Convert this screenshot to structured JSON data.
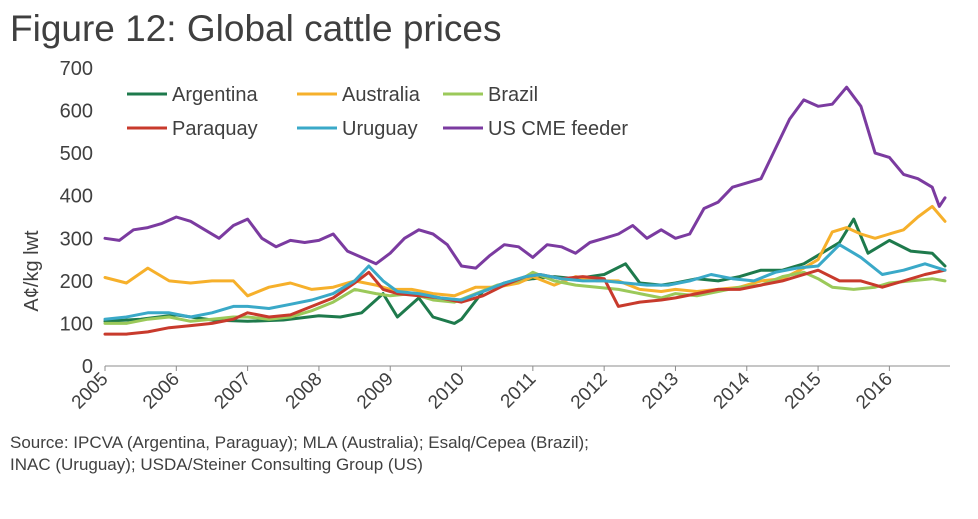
{
  "title": "Figure 12: Global cattle prices",
  "source": {
    "line1": "Source: IPCVA (Argentina, Paraguay); MLA (Australia); Esalq/Cepea (Brazil);",
    "line2": "INAC (Uruguay); USDA/Steiner Consulting Group (US)"
  },
  "chart_data": {
    "type": "line",
    "ylabel": "A¢/kg lwt",
    "ylim": [
      0,
      700
    ],
    "yticks": [
      0,
      100,
      200,
      300,
      400,
      500,
      600,
      700
    ],
    "xlim": [
      2005,
      2016.85
    ],
    "xticks": [
      "2005",
      "2006",
      "2007",
      "2008",
      "2009",
      "2010",
      "2011",
      "2012",
      "2013",
      "2014",
      "2015",
      "2016"
    ],
    "grid": false,
    "legend_position": "top-left",
    "series": [
      {
        "name": "Argentina",
        "color": "#1e7a4c",
        "points": [
          [
            2005,
            105
          ],
          [
            2005.5,
            110
          ],
          [
            2006,
            120
          ],
          [
            2006.5,
            108
          ],
          [
            2007,
            105
          ],
          [
            2007.5,
            108
          ],
          [
            2008,
            118
          ],
          [
            2008.3,
            115
          ],
          [
            2008.6,
            125
          ],
          [
            2008.9,
            170
          ],
          [
            2009.1,
            115
          ],
          [
            2009.4,
            160
          ],
          [
            2009.6,
            115
          ],
          [
            2009.9,
            100
          ],
          [
            2010,
            110
          ],
          [
            2010.3,
            175
          ],
          [
            2010.6,
            195
          ],
          [
            2011,
            205
          ],
          [
            2011.3,
            210
          ],
          [
            2011.6,
            205
          ],
          [
            2012,
            215
          ],
          [
            2012.3,
            240
          ],
          [
            2012.5,
            195
          ],
          [
            2012.8,
            190
          ],
          [
            2013,
            195
          ],
          [
            2013.3,
            205
          ],
          [
            2013.6,
            200
          ],
          [
            2013.9,
            210
          ],
          [
            2014.2,
            225
          ],
          [
            2014.5,
            225
          ],
          [
            2014.8,
            240
          ],
          [
            2015,
            260
          ],
          [
            2015.3,
            290
          ],
          [
            2015.5,
            345
          ],
          [
            2015.7,
            265
          ],
          [
            2016,
            295
          ],
          [
            2016.3,
            270
          ],
          [
            2016.6,
            265
          ],
          [
            2016.78,
            235
          ]
        ]
      },
      {
        "name": "Australia",
        "color": "#f6b02b",
        "points": [
          [
            2005,
            208
          ],
          [
            2005.3,
            195
          ],
          [
            2005.6,
            230
          ],
          [
            2005.9,
            200
          ],
          [
            2006.2,
            195
          ],
          [
            2006.5,
            200
          ],
          [
            2006.8,
            200
          ],
          [
            2007,
            165
          ],
          [
            2007.3,
            185
          ],
          [
            2007.6,
            195
          ],
          [
            2007.9,
            180
          ],
          [
            2008.2,
            185
          ],
          [
            2008.5,
            200
          ],
          [
            2008.8,
            190
          ],
          [
            2009,
            180
          ],
          [
            2009.3,
            180
          ],
          [
            2009.6,
            170
          ],
          [
            2009.9,
            165
          ],
          [
            2010.2,
            185
          ],
          [
            2010.5,
            185
          ],
          [
            2010.8,
            195
          ],
          [
            2011,
            210
          ],
          [
            2011.3,
            190
          ],
          [
            2011.6,
            210
          ],
          [
            2011.9,
            200
          ],
          [
            2012.2,
            200
          ],
          [
            2012.5,
            180
          ],
          [
            2012.8,
            175
          ],
          [
            2013,
            180
          ],
          [
            2013.3,
            175
          ],
          [
            2013.6,
            180
          ],
          [
            2013.9,
            185
          ],
          [
            2014.2,
            200
          ],
          [
            2014.5,
            205
          ],
          [
            2014.8,
            230
          ],
          [
            2015,
            250
          ],
          [
            2015.2,
            315
          ],
          [
            2015.4,
            325
          ],
          [
            2015.6,
            310
          ],
          [
            2015.8,
            300
          ],
          [
            2016,
            310
          ],
          [
            2016.2,
            320
          ],
          [
            2016.4,
            350
          ],
          [
            2016.6,
            375
          ],
          [
            2016.78,
            340
          ]
        ]
      },
      {
        "name": "Brazil",
        "color": "#9bc95a",
        "points": [
          [
            2005,
            100
          ],
          [
            2005.3,
            100
          ],
          [
            2005.6,
            110
          ],
          [
            2005.9,
            115
          ],
          [
            2006.2,
            105
          ],
          [
            2006.5,
            110
          ],
          [
            2006.8,
            115
          ],
          [
            2007,
            115
          ],
          [
            2007.3,
            110
          ],
          [
            2007.6,
            115
          ],
          [
            2007.9,
            130
          ],
          [
            2008.2,
            150
          ],
          [
            2008.5,
            180
          ],
          [
            2008.8,
            170
          ],
          [
            2009,
            165
          ],
          [
            2009.3,
            170
          ],
          [
            2009.6,
            155
          ],
          [
            2009.9,
            150
          ],
          [
            2010.2,
            170
          ],
          [
            2010.5,
            190
          ],
          [
            2010.8,
            200
          ],
          [
            2011,
            220
          ],
          [
            2011.3,
            200
          ],
          [
            2011.6,
            190
          ],
          [
            2011.9,
            185
          ],
          [
            2012.2,
            180
          ],
          [
            2012.5,
            170
          ],
          [
            2012.8,
            160
          ],
          [
            2013,
            170
          ],
          [
            2013.3,
            165
          ],
          [
            2013.6,
            175
          ],
          [
            2013.9,
            185
          ],
          [
            2014.2,
            190
          ],
          [
            2014.5,
            210
          ],
          [
            2014.8,
            220
          ],
          [
            2015,
            205
          ],
          [
            2015.2,
            185
          ],
          [
            2015.5,
            180
          ],
          [
            2015.8,
            185
          ],
          [
            2016,
            195
          ],
          [
            2016.3,
            200
          ],
          [
            2016.6,
            205
          ],
          [
            2016.78,
            200
          ]
        ]
      },
      {
        "name": "Paraquay",
        "color": "#c83a2c",
        "points": [
          [
            2005,
            75
          ],
          [
            2005.3,
            75
          ],
          [
            2005.6,
            80
          ],
          [
            2005.9,
            90
          ],
          [
            2006.2,
            95
          ],
          [
            2006.5,
            100
          ],
          [
            2006.8,
            110
          ],
          [
            2007,
            125
          ],
          [
            2007.3,
            115
          ],
          [
            2007.6,
            120
          ],
          [
            2007.9,
            140
          ],
          [
            2008.2,
            160
          ],
          [
            2008.5,
            195
          ],
          [
            2008.7,
            220
          ],
          [
            2008.9,
            180
          ],
          [
            2009.1,
            170
          ],
          [
            2009.4,
            165
          ],
          [
            2009.7,
            160
          ],
          [
            2010,
            150
          ],
          [
            2010.3,
            165
          ],
          [
            2010.6,
            190
          ],
          [
            2010.9,
            210
          ],
          [
            2011.1,
            215
          ],
          [
            2011.4,
            205
          ],
          [
            2011.7,
            210
          ],
          [
            2012,
            205
          ],
          [
            2012.2,
            140
          ],
          [
            2012.5,
            150
          ],
          [
            2012.8,
            155
          ],
          [
            2013,
            160
          ],
          [
            2013.3,
            170
          ],
          [
            2013.6,
            180
          ],
          [
            2013.9,
            180
          ],
          [
            2014.2,
            190
          ],
          [
            2014.5,
            200
          ],
          [
            2014.8,
            215
          ],
          [
            2015,
            225
          ],
          [
            2015.3,
            200
          ],
          [
            2015.6,
            200
          ],
          [
            2015.9,
            185
          ],
          [
            2016.2,
            200
          ],
          [
            2016.5,
            215
          ],
          [
            2016.78,
            225
          ]
        ]
      },
      {
        "name": "Uruguay",
        "color": "#3aa9c8",
        "points": [
          [
            2005,
            110
          ],
          [
            2005.3,
            115
          ],
          [
            2005.6,
            125
          ],
          [
            2005.9,
            125
          ],
          [
            2006.2,
            115
          ],
          [
            2006.5,
            125
          ],
          [
            2006.8,
            140
          ],
          [
            2007,
            140
          ],
          [
            2007.3,
            135
          ],
          [
            2007.6,
            145
          ],
          [
            2007.9,
            155
          ],
          [
            2008.2,
            170
          ],
          [
            2008.5,
            200
          ],
          [
            2008.7,
            235
          ],
          [
            2008.9,
            200
          ],
          [
            2009.1,
            175
          ],
          [
            2009.4,
            170
          ],
          [
            2009.7,
            160
          ],
          [
            2010,
            155
          ],
          [
            2010.3,
            175
          ],
          [
            2010.6,
            195
          ],
          [
            2010.9,
            210
          ],
          [
            2011.1,
            215
          ],
          [
            2011.4,
            205
          ],
          [
            2011.7,
            200
          ],
          [
            2012,
            200
          ],
          [
            2012.3,
            195
          ],
          [
            2012.6,
            190
          ],
          [
            2012.9,
            190
          ],
          [
            2013.2,
            200
          ],
          [
            2013.5,
            215
          ],
          [
            2013.8,
            205
          ],
          [
            2014.1,
            200
          ],
          [
            2014.4,
            220
          ],
          [
            2014.7,
            230
          ],
          [
            2015,
            235
          ],
          [
            2015.3,
            285
          ],
          [
            2015.6,
            255
          ],
          [
            2015.9,
            215
          ],
          [
            2016.2,
            225
          ],
          [
            2016.5,
            240
          ],
          [
            2016.78,
            225
          ]
        ]
      },
      {
        "name": "US CME feeder",
        "color": "#7b3ba0",
        "points": [
          [
            2005,
            300
          ],
          [
            2005.2,
            295
          ],
          [
            2005.4,
            320
          ],
          [
            2005.6,
            325
          ],
          [
            2005.8,
            335
          ],
          [
            2006,
            350
          ],
          [
            2006.2,
            340
          ],
          [
            2006.4,
            320
          ],
          [
            2006.6,
            300
          ],
          [
            2006.8,
            330
          ],
          [
            2007,
            345
          ],
          [
            2007.2,
            300
          ],
          [
            2007.4,
            280
          ],
          [
            2007.6,
            295
          ],
          [
            2007.8,
            290
          ],
          [
            2008,
            295
          ],
          [
            2008.2,
            310
          ],
          [
            2008.4,
            270
          ],
          [
            2008.6,
            255
          ],
          [
            2008.8,
            240
          ],
          [
            2009,
            265
          ],
          [
            2009.2,
            300
          ],
          [
            2009.4,
            320
          ],
          [
            2009.6,
            310
          ],
          [
            2009.8,
            285
          ],
          [
            2010,
            235
          ],
          [
            2010.2,
            230
          ],
          [
            2010.4,
            260
          ],
          [
            2010.6,
            285
          ],
          [
            2010.8,
            280
          ],
          [
            2011,
            255
          ],
          [
            2011.2,
            285
          ],
          [
            2011.4,
            280
          ],
          [
            2011.6,
            265
          ],
          [
            2011.8,
            290
          ],
          [
            2012,
            300
          ],
          [
            2012.2,
            310
          ],
          [
            2012.4,
            330
          ],
          [
            2012.6,
            300
          ],
          [
            2012.8,
            320
          ],
          [
            2013,
            300
          ],
          [
            2013.2,
            310
          ],
          [
            2013.4,
            370
          ],
          [
            2013.6,
            385
          ],
          [
            2013.8,
            420
          ],
          [
            2014,
            430
          ],
          [
            2014.2,
            440
          ],
          [
            2014.4,
            510
          ],
          [
            2014.6,
            580
          ],
          [
            2014.8,
            625
          ],
          [
            2015,
            610
          ],
          [
            2015.2,
            615
          ],
          [
            2015.4,
            655
          ],
          [
            2015.6,
            610
          ],
          [
            2015.8,
            500
          ],
          [
            2016,
            490
          ],
          [
            2016.2,
            450
          ],
          [
            2016.4,
            440
          ],
          [
            2016.6,
            420
          ],
          [
            2016.7,
            375
          ],
          [
            2016.78,
            395
          ]
        ]
      }
    ]
  }
}
